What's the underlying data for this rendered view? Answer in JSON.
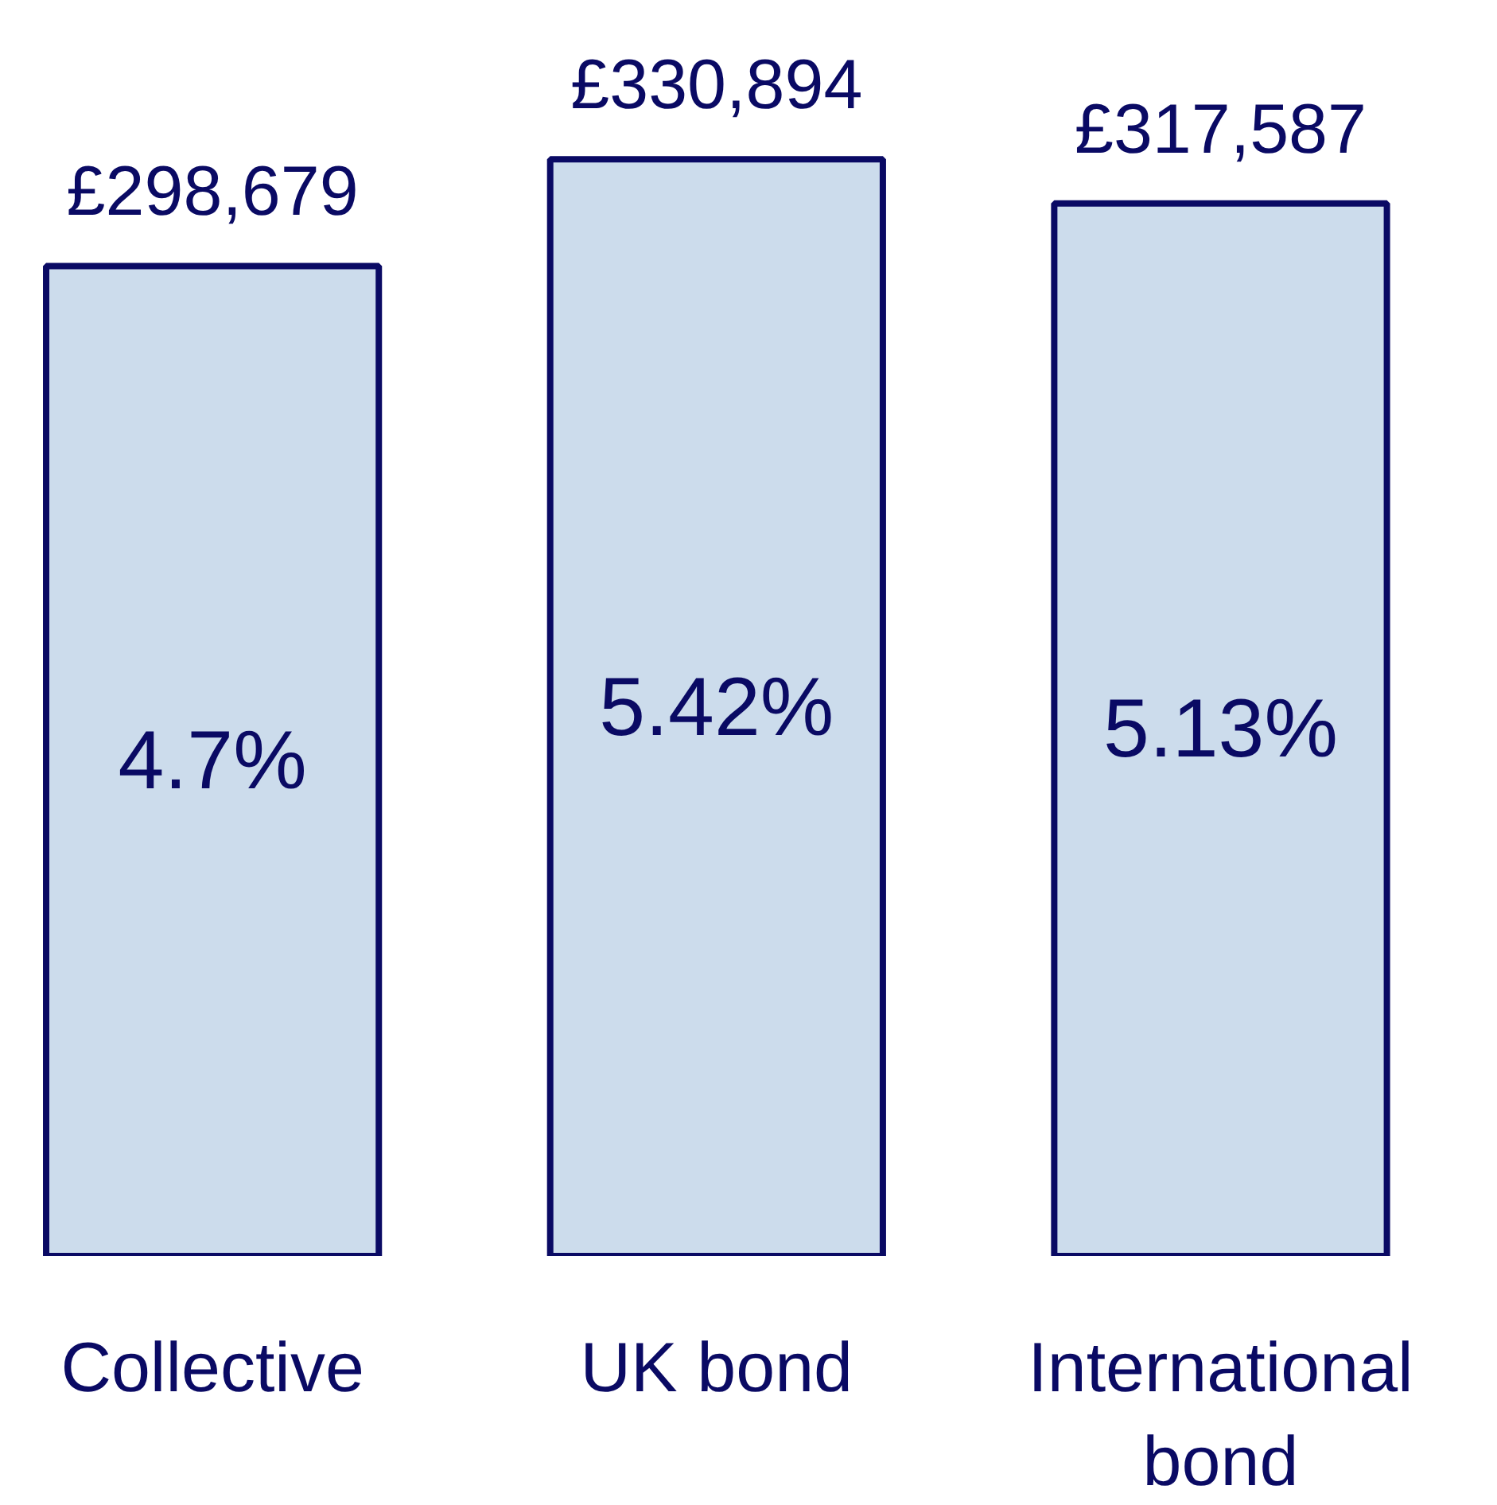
{
  "chart_data": {
    "type": "bar",
    "categories": [
      "Collective",
      "UK bond",
      "International bond"
    ],
    "series": [
      {
        "color": "#ccdcec",
        "values": [
          298679,
          330894,
          317587
        ],
        "value_labels": [
          "£298,679",
          "£330,894",
          "£317,587"
        ]
      }
    ],
    "annotations": [
      "4.7%",
      "5.42%",
      "5.13%"
    ],
    "grid": false
  }
}
